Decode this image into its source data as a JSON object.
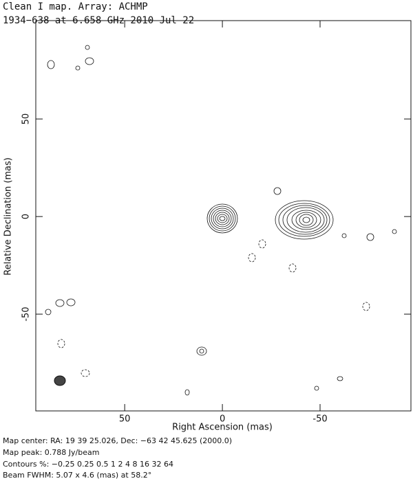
{
  "chart_data": {
    "type": "contour",
    "title": "Clean I map.  Array: ACHMP",
    "subtitle": "1934−638 at 6.658 GHz 2010 Jul 22",
    "x_label": "Right Ascension  (mas)",
    "y_label": "Relative Declination  (mas)",
    "xlim": [
      95.5,
      -96.5
    ],
    "ylim": [
      -99.6,
      100.4
    ],
    "xticks": [
      50,
      0,
      -50
    ],
    "yticks": [
      50,
      0,
      -50
    ],
    "grid": false,
    "notes": [
      "Map center:  RA: 19 39 25.026,  Dec: −63 42 45.625 (2000.0)",
      "Map peak: 0.788 Jy/beam",
      "Contours %: −0.25 0.25 0.5 1 2 4 8 16 32 64",
      "Beam FWHM: 5.07 x 4.6 (mas) at 58.2°"
    ]
  }
}
